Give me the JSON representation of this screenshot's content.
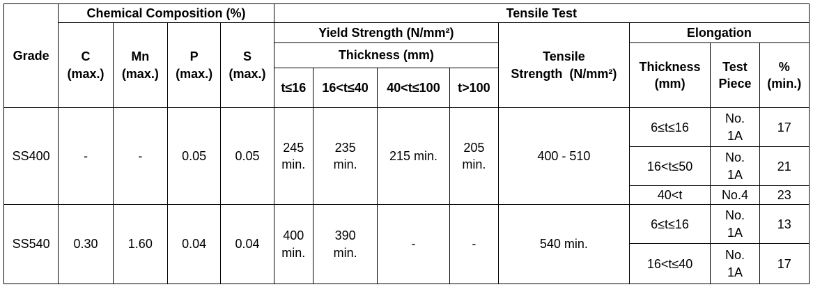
{
  "headers": {
    "grade": "Grade",
    "chemical": "Chemical Composition (%)",
    "tensile_test": "Tensile Test",
    "c": "C",
    "mn": "Mn",
    "p": "P",
    "s": "S",
    "max": "(max.)",
    "yield_strength": "Yield Strength (N/mm²)",
    "thickness": "Thickness (mm)",
    "tensile_strength_1": "Tensile",
    "tensile_strength_2": "Strength  (N/mm²)",
    "elongation": "Elongation",
    "elong_thickness_1": "Thickness",
    "elong_thickness_2": "(mm)",
    "test_piece_1": "Test",
    "test_piece_2": "Piece",
    "percent_1": "%",
    "percent_2": "(min.)",
    "t1": "t≤16",
    "t2": "16<t≤40",
    "t3": "40<t≤100",
    "t4": "t>100"
  },
  "rows": [
    {
      "grade": "SS400",
      "c": "-",
      "mn": "-",
      "p": "0.05",
      "s": "0.05",
      "ys1a": "245",
      "ys1b": "min.",
      "ys2a": "235",
      "ys2b": "min.",
      "ys3": "215 min.",
      "ys4a": "205",
      "ys4b": "min.",
      "tensile": "400 - 510",
      "elongation": [
        {
          "thickness": "6≤t≤16",
          "piece_a": "No.",
          "piece_b": "1A",
          "percent": "17"
        },
        {
          "thickness": "16<t≤50",
          "piece_a": "No.",
          "piece_b": "1A",
          "percent": "21"
        },
        {
          "thickness": "40<t",
          "piece_a": "No.4",
          "piece_b": "",
          "percent": "23"
        }
      ]
    },
    {
      "grade": "SS540",
      "c": "0.30",
      "mn": "1.60",
      "p": "0.04",
      "s": "0.04",
      "ys1a": "400",
      "ys1b": "min.",
      "ys2a": "390",
      "ys2b": "min.",
      "ys3": "-",
      "ys4": "-",
      "tensile": "540 min.",
      "elongation": [
        {
          "thickness": "6≤t≤16",
          "piece_a": "No.",
          "piece_b": "1A",
          "percent": "13"
        },
        {
          "thickness": "16<t≤40",
          "piece_a": "No.",
          "piece_b": "1A",
          "percent": "17"
        }
      ]
    }
  ]
}
